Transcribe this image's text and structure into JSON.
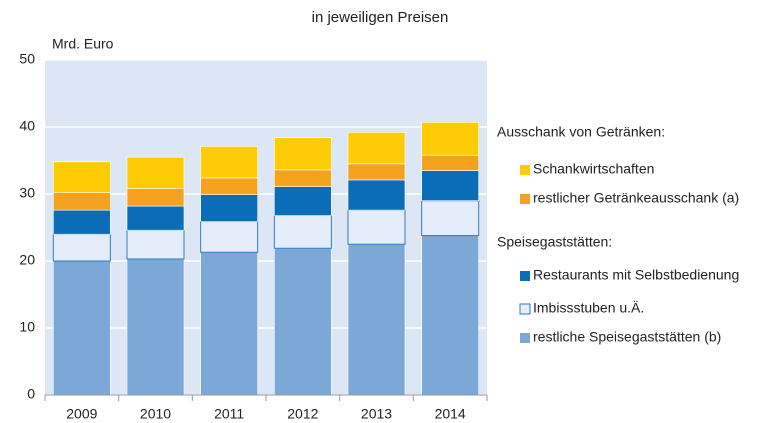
{
  "chart_data": {
    "type": "stacked_bar",
    "title": "in jeweiligen Preisen",
    "y_label": "Mrd. Euro",
    "categories": [
      "2009",
      "2010",
      "2011",
      "2012",
      "2013",
      "2014"
    ],
    "series": [
      {
        "name": "restliche Speisegaststätten (b)",
        "color": "#7ba8d6",
        "values": [
          20.0,
          20.3,
          21.3,
          21.9,
          22.5,
          23.8
        ]
      },
      {
        "name": "Imbissstuben u.Ä.",
        "color": "#e4edf9",
        "values": [
          4.0,
          4.3,
          4.6,
          4.9,
          5.1,
          5.2
        ]
      },
      {
        "name": "Restaurants mit Selbstbedienung",
        "color": "#0b6cb7",
        "values": [
          3.6,
          3.6,
          4.0,
          4.3,
          4.5,
          4.5
        ]
      },
      {
        "name": "restlicher Getränkeausschank (a)",
        "color": "#f5a21e",
        "values": [
          2.6,
          2.6,
          2.5,
          2.5,
          2.4,
          2.3
        ]
      },
      {
        "name": "Schankwirtschaften",
        "color": "#ffcb05",
        "values": [
          4.6,
          4.7,
          4.7,
          4.8,
          4.7,
          4.9
        ]
      }
    ],
    "legend_headings": [
      {
        "text": "Ausschank von Getränken:",
        "color": "#ef8a25"
      },
      {
        "text": "Speisegaststätten:",
        "color": "#1a72bb"
      }
    ],
    "ylim": [
      0,
      50
    ],
    "yticks": [
      0,
      10,
      20,
      30,
      40,
      50
    ],
    "grid": true
  }
}
